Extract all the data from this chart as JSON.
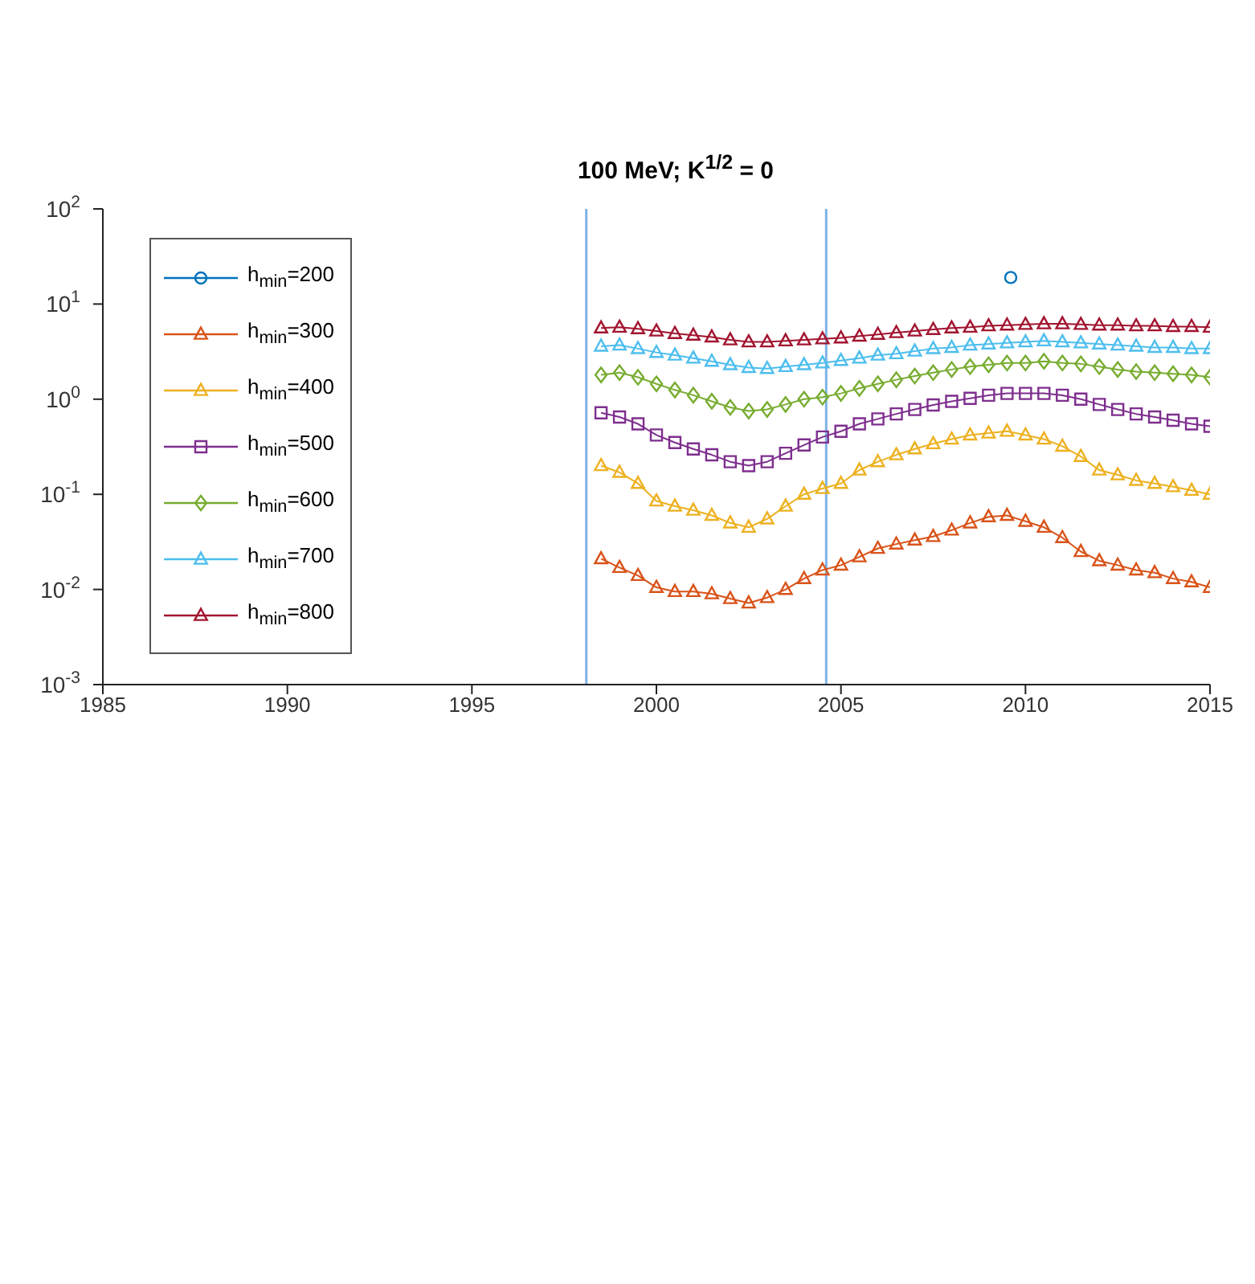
{
  "chart_data": {
    "type": "line",
    "title": "100 MeV; K$^{1/2}$ = 0",
    "x": [
      1998.5,
      1999,
      1999.5,
      2000,
      2000.5,
      2001,
      2001.5,
      2002,
      2002.5,
      2003,
      2003.5,
      2004,
      2004.5,
      2005,
      2005.5,
      2006,
      2006.5,
      2007,
      2007.5,
      2008,
      2008.5,
      2009,
      2009.5,
      2010,
      2010.5,
      2011,
      2011.5,
      2012,
      2012.5,
      2013,
      2013.5,
      2014,
      2014.5,
      2015
    ],
    "series": [
      {
        "name": "h$_{min}$=200",
        "color": "#0072bd",
        "marker": "circle",
        "x": [
          2009.6
        ],
        "values": [
          19
        ]
      },
      {
        "name": "h$_{min}$=300",
        "color": "#d95319",
        "marker": "triangle",
        "values": [
          0.021,
          0.017,
          0.014,
          0.0105,
          0.0095,
          0.0095,
          0.009,
          0.008,
          0.0072,
          0.0082,
          0.01,
          0.013,
          0.016,
          0.018,
          0.022,
          0.027,
          0.03,
          0.033,
          0.036,
          0.042,
          0.05,
          0.058,
          0.06,
          0.052,
          0.045,
          0.035,
          0.025,
          0.02,
          0.018,
          0.016,
          0.015,
          0.013,
          0.012,
          0.0105
        ]
      },
      {
        "name": "h$_{min}$=400",
        "color": "#edb120",
        "marker": "triangle",
        "values": [
          0.2,
          0.17,
          0.13,
          0.085,
          0.075,
          0.068,
          0.06,
          0.05,
          0.045,
          0.055,
          0.075,
          0.1,
          0.115,
          0.13,
          0.18,
          0.22,
          0.26,
          0.3,
          0.34,
          0.38,
          0.42,
          0.44,
          0.46,
          0.42,
          0.38,
          0.32,
          0.25,
          0.18,
          0.16,
          0.14,
          0.13,
          0.12,
          0.11,
          0.1
        ]
      },
      {
        "name": "h$_{min}$=500",
        "color": "#7e2f8e",
        "marker": "square",
        "values": [
          0.72,
          0.65,
          0.55,
          0.42,
          0.35,
          0.3,
          0.26,
          0.22,
          0.2,
          0.22,
          0.27,
          0.33,
          0.4,
          0.46,
          0.55,
          0.62,
          0.7,
          0.78,
          0.87,
          0.95,
          1.02,
          1.1,
          1.15,
          1.15,
          1.15,
          1.1,
          1.0,
          0.88,
          0.78,
          0.7,
          0.65,
          0.6,
          0.55,
          0.52
        ]
      },
      {
        "name": "h$_{min}$=600",
        "color": "#77ac30",
        "marker": "diamond",
        "values": [
          1.8,
          1.9,
          1.7,
          1.45,
          1.25,
          1.1,
          0.95,
          0.82,
          0.75,
          0.78,
          0.88,
          1.0,
          1.05,
          1.15,
          1.3,
          1.45,
          1.6,
          1.75,
          1.9,
          2.05,
          2.2,
          2.3,
          2.4,
          2.4,
          2.5,
          2.4,
          2.35,
          2.2,
          2.05,
          1.95,
          1.9,
          1.85,
          1.8,
          1.7
        ]
      },
      {
        "name": "h$_{min}$=700",
        "color": "#4dbeee",
        "marker": "triangle",
        "values": [
          3.6,
          3.7,
          3.4,
          3.1,
          2.9,
          2.7,
          2.5,
          2.3,
          2.15,
          2.1,
          2.2,
          2.3,
          2.4,
          2.55,
          2.7,
          2.9,
          3.0,
          3.2,
          3.4,
          3.5,
          3.7,
          3.8,
          3.9,
          4.0,
          4.1,
          4.0,
          3.9,
          3.8,
          3.7,
          3.6,
          3.5,
          3.5,
          3.4,
          3.4
        ]
      },
      {
        "name": "h$_{min}$=800",
        "color": "#a2142f",
        "marker": "triangle",
        "values": [
          5.6,
          5.7,
          5.5,
          5.2,
          4.9,
          4.7,
          4.5,
          4.2,
          4.0,
          4.0,
          4.1,
          4.2,
          4.3,
          4.4,
          4.6,
          4.8,
          5.0,
          5.2,
          5.4,
          5.6,
          5.7,
          5.9,
          6.0,
          6.1,
          6.2,
          6.2,
          6.1,
          6.0,
          6.0,
          5.9,
          5.9,
          5.8,
          5.8,
          5.7
        ]
      }
    ],
    "xlim": [
      1985,
      2015
    ],
    "xticks": [
      1985,
      1990,
      1995,
      2000,
      2005,
      2010,
      2015
    ],
    "log": "y",
    "ylim": [
      0.001,
      100
    ],
    "yticks": [
      {
        "value": 0.001,
        "label": "10$^{-3}$"
      },
      {
        "value": 0.01,
        "label": "10$^{-2}$"
      },
      {
        "value": 0.1,
        "label": "10$^{-1}$"
      },
      {
        "value": 1,
        "label": "10$^{0}$"
      },
      {
        "value": 10,
        "label": "10$^{1}$"
      },
      {
        "value": 100,
        "label": "10$^{2}$"
      }
    ],
    "ref_lines": [
      {
        "axis": "x",
        "value": 1998.1,
        "color": "#7fb2e5"
      },
      {
        "axis": "x",
        "value": 2004.6,
        "color": "#7fb2e5"
      }
    ],
    "grid": false,
    "legend": "top left",
    "line_style": "solid"
  }
}
